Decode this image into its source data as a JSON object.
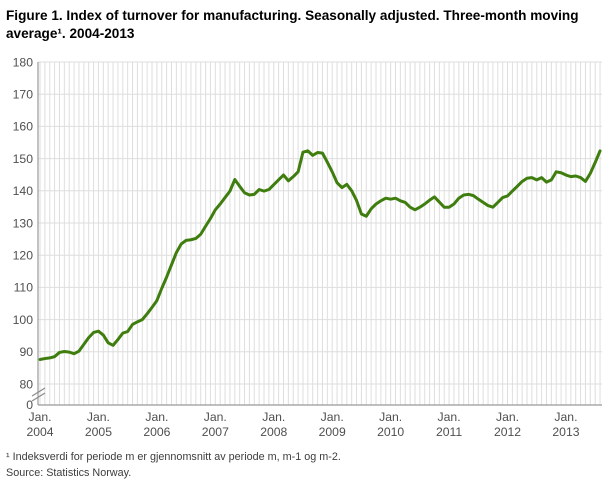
{
  "header": {
    "title": "Figure 1. Index of turnover for manufacturing. Seasonally adjusted. Three-month moving average¹. 2004-2013"
  },
  "footer": {
    "footnote": "¹ Indeksverdi for periode m er gjennomsnitt av periode m, m-1 og m-2.",
    "source": "Source: Statistics Norway."
  },
  "chart_data": {
    "type": "line",
    "title": "Index of turnover for manufacturing, seasonally adjusted, three-month moving average",
    "x_unit": "month",
    "x_start": "2004-01",
    "x_end": "2013-08",
    "x_tick_month_label": "Jan.",
    "x_tick_years": [
      "2004",
      "2005",
      "2006",
      "2007",
      "2008",
      "2009",
      "2010",
      "2011",
      "2012",
      "2013"
    ],
    "y_axis": {
      "ticks": [
        180,
        170,
        160,
        150,
        140,
        130,
        120,
        110,
        100,
        90,
        80
      ],
      "zero_tick_label": "0",
      "axis_break": true,
      "ymin_shown": 80,
      "ymax_shown": 180
    },
    "grid": true,
    "legend": "none",
    "series": [
      {
        "name": "Index of turnover, manufacturing",
        "color": "#3e7d0e",
        "values": [
          87.6,
          87.9,
          88.1,
          88.5,
          89.8,
          90.1,
          89.9,
          89.4,
          90.2,
          92.3,
          94.4,
          96.0,
          96.4,
          95.2,
          92.8,
          92.0,
          93.8,
          95.8,
          96.3,
          98.5,
          99.3,
          100.0,
          101.8,
          103.8,
          105.9,
          109.7,
          113.2,
          117.0,
          120.8,
          123.5,
          124.6,
          124.8,
          125.2,
          126.5,
          129.0,
          131.4,
          134.1,
          135.9,
          137.9,
          139.9,
          143.5,
          141.4,
          139.4,
          138.7,
          138.9,
          140.4,
          139.9,
          140.4,
          141.9,
          143.4,
          144.9,
          143.1,
          144.4,
          145.9,
          152.0,
          152.4,
          151.0,
          151.9,
          151.7,
          148.9,
          145.9,
          142.5,
          141.0,
          142.0,
          140.0,
          137.0,
          132.8,
          132.1,
          134.4,
          135.9,
          136.9,
          137.7,
          137.4,
          137.7,
          136.9,
          136.4,
          134.9,
          134.1,
          134.9,
          135.9,
          137.1,
          138.1,
          136.5,
          134.9,
          134.9,
          135.9,
          137.7,
          138.7,
          138.9,
          138.5,
          137.4,
          136.4,
          135.4,
          134.9,
          136.4,
          137.9,
          138.4,
          139.9,
          141.4,
          142.9,
          143.9,
          144.1,
          143.4,
          144.1,
          142.7,
          143.4,
          145.9,
          145.6,
          144.9,
          144.4,
          144.6,
          144.1,
          142.9,
          145.4,
          148.8,
          152.4
        ]
      }
    ]
  },
  "style": {
    "grid_color": "#dedede",
    "axis_color": "#999999",
    "tick_label_color": "#4f4f4f",
    "line_color": "#3e7d0e",
    "background": "#ffffff"
  }
}
